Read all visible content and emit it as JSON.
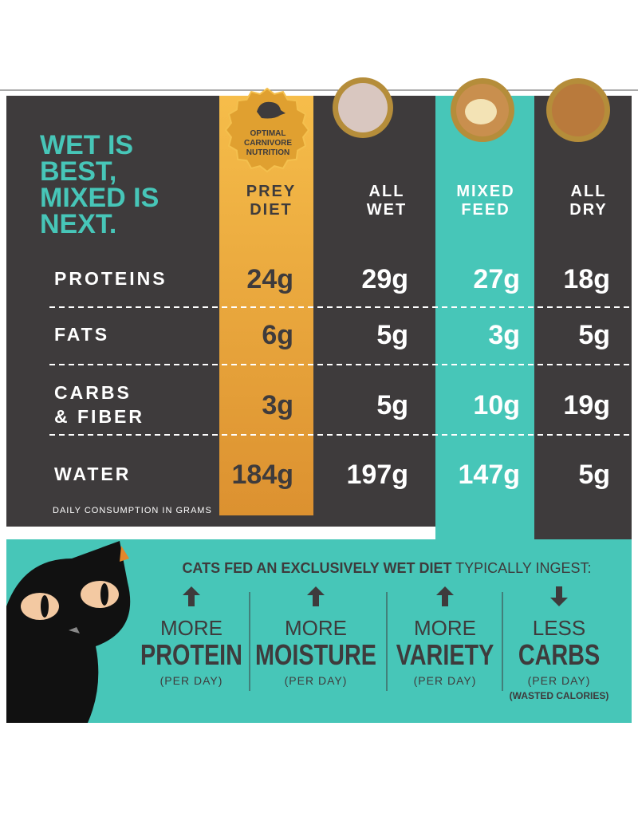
{
  "title_lines": [
    "WET IS",
    "BEST,",
    "MIXED IS",
    "NEXT."
  ],
  "badge": [
    "OPTIMAL",
    "CARNIVORE",
    "NUTRITION"
  ],
  "table": {
    "columns": [
      [
        "PREY",
        "DIET"
      ],
      [
        "ALL",
        "WET"
      ],
      [
        "MIXED",
        "FEED"
      ],
      [
        "ALL",
        "DRY"
      ]
    ],
    "rows": [
      {
        "label": [
          "PROTEINS"
        ],
        "values": [
          "24g",
          "29g",
          "27g",
          "18g"
        ]
      },
      {
        "label": [
          "FATS"
        ],
        "values": [
          "6g",
          "5g",
          "3g",
          "5g"
        ]
      },
      {
        "label": [
          "CARBS",
          "& FIBER"
        ],
        "values": [
          "3g",
          "5g",
          "10g",
          "19g"
        ]
      },
      {
        "label": [
          "WATER"
        ],
        "values": [
          "184g",
          "197g",
          "147g",
          "5g"
        ]
      }
    ],
    "footnote": "DAILY CONSUMPTION IN GRAMS"
  },
  "benefits": {
    "heading_bold": "CATS FED AN EXCLUSIVELY WET DIET",
    "heading_rest": " TYPICALLY INGEST:",
    "items": [
      {
        "direction": "up",
        "lines": [
          "MORE",
          "PROTEIN",
          "(PER DAY)"
        ]
      },
      {
        "direction": "up",
        "lines": [
          "MORE",
          "MOISTURE",
          "(PER DAY)"
        ]
      },
      {
        "direction": "up",
        "lines": [
          "MORE",
          "VARIETY",
          "(PER DAY)"
        ]
      },
      {
        "direction": "down",
        "lines": [
          "LESS",
          "CARBS",
          "(PER DAY)",
          "(WASTED CALORIES)"
        ]
      }
    ]
  }
}
